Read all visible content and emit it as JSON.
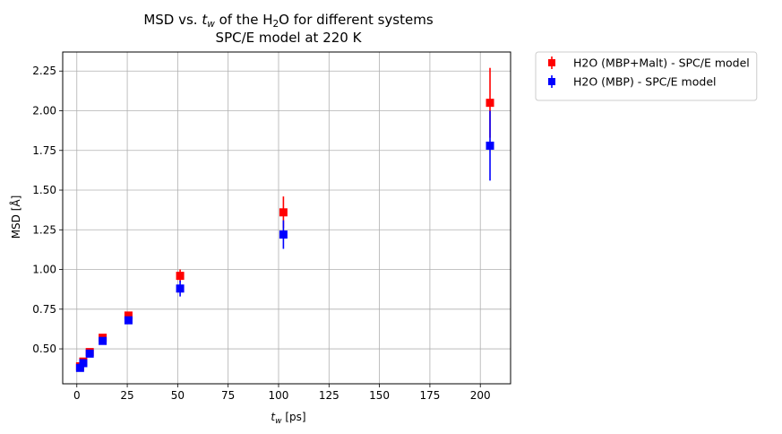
{
  "chart_data": {
    "type": "scatter",
    "title_line1": {
      "prefix": "MSD vs. ",
      "var": "t",
      "var_sub": "w",
      "mid": " of the H",
      "mol_sub": "2",
      "suffix": "O for different systems"
    },
    "title_line2": "SPC/E model at 220 K",
    "xlabel": {
      "var": "t",
      "var_sub": "w",
      "unit": " [ps]"
    },
    "ylabel": "MSD [Å]",
    "xlim": [
      -7,
      215
    ],
    "ylim": [
      0.28,
      2.37
    ],
    "xticks": [
      0,
      25,
      50,
      75,
      100,
      125,
      150,
      175,
      200
    ],
    "yticks": [
      0.5,
      0.75,
      1.0,
      1.25,
      1.5,
      1.75,
      2.0,
      2.25
    ],
    "xtick_labels": [
      "0",
      "25",
      "50",
      "75",
      "100",
      "125",
      "150",
      "175",
      "200"
    ],
    "ytick_labels": [
      "0.50",
      "0.75",
      "1.00",
      "1.25",
      "1.50",
      "1.75",
      "2.00",
      "2.25"
    ],
    "grid": true,
    "legend_placement": "outside-upper-right",
    "series": [
      {
        "name": "H2O (MBP+Malt) - SPC/E model",
        "color": "#ff0000",
        "marker": "square",
        "points": [
          {
            "x": 1.6,
            "y": 0.39,
            "err": 0.01
          },
          {
            "x": 3.2,
            "y": 0.42,
            "err": 0.01
          },
          {
            "x": 6.4,
            "y": 0.48,
            "err": 0.01
          },
          {
            "x": 12.8,
            "y": 0.57,
            "err": 0.01
          },
          {
            "x": 25.6,
            "y": 0.71,
            "err": 0.02
          },
          {
            "x": 51.2,
            "y": 0.96,
            "err": 0.04
          },
          {
            "x": 102.4,
            "y": 1.36,
            "err": 0.1
          },
          {
            "x": 204.8,
            "y": 2.05,
            "err": 0.22
          }
        ]
      },
      {
        "name": "H2O (MBP) - SPC/E model",
        "color": "#0000ff",
        "marker": "square",
        "points": [
          {
            "x": 1.6,
            "y": 0.38,
            "err": 0.01
          },
          {
            "x": 3.2,
            "y": 0.41,
            "err": 0.01
          },
          {
            "x": 6.4,
            "y": 0.47,
            "err": 0.01
          },
          {
            "x": 12.8,
            "y": 0.55,
            "err": 0.01
          },
          {
            "x": 25.6,
            "y": 0.68,
            "err": 0.02
          },
          {
            "x": 51.2,
            "y": 0.88,
            "err": 0.05
          },
          {
            "x": 102.4,
            "y": 1.22,
            "err": 0.09
          },
          {
            "x": 204.8,
            "y": 1.78,
            "err": 0.22
          }
        ]
      }
    ]
  }
}
